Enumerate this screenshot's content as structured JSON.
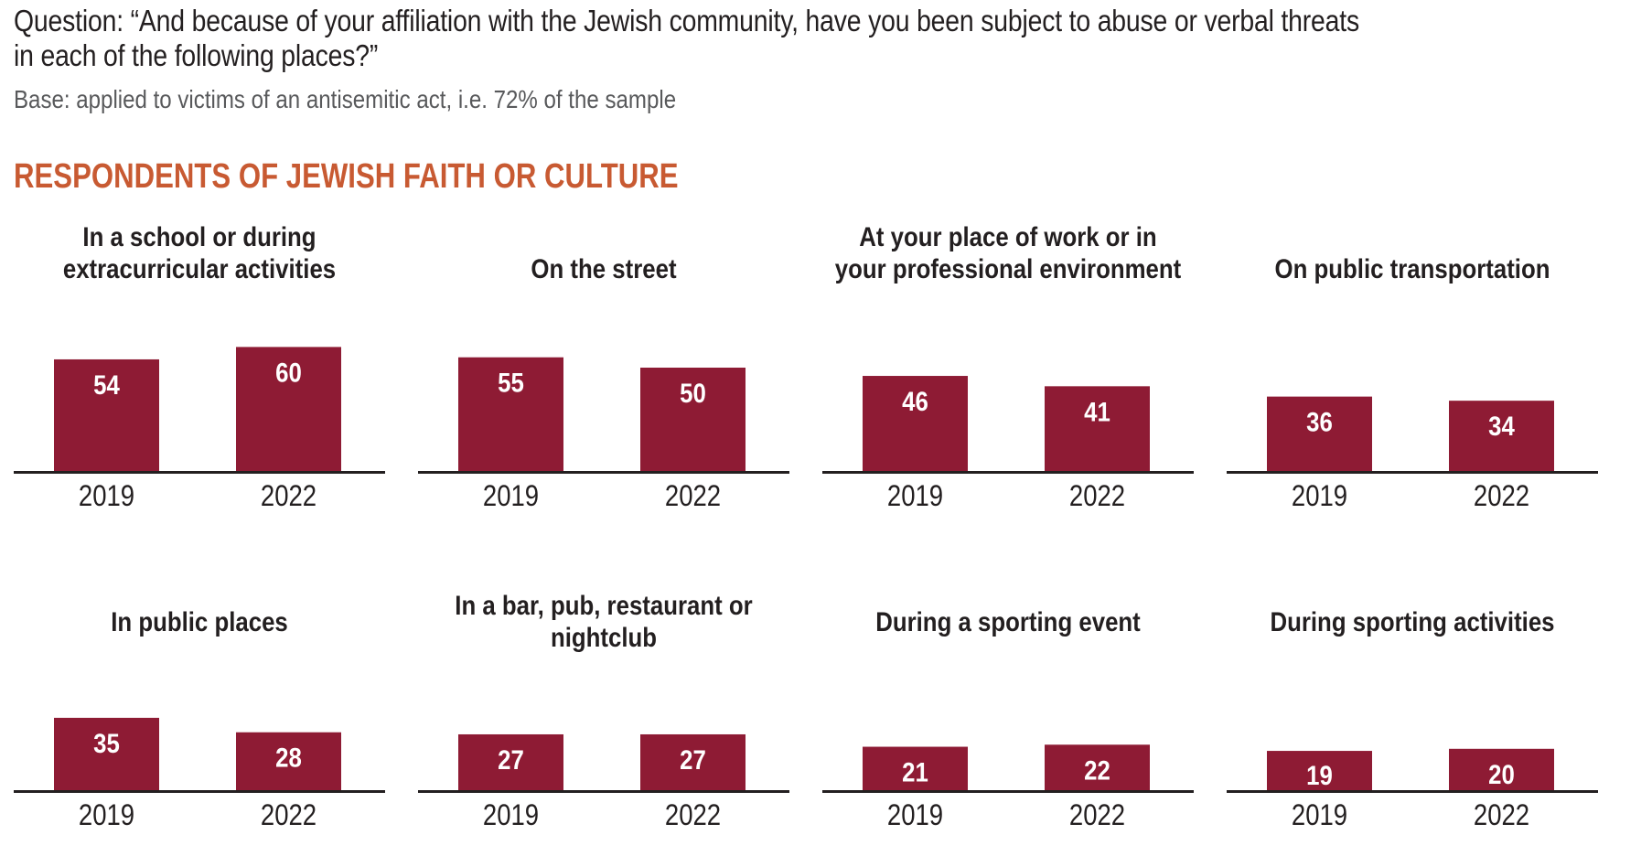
{
  "header": {
    "question": "Question: “And because of your affiliation with the Jewish community, have you been subject to abuse or verbal threats in each of the following places?”",
    "base": "Base: applied to victims of an antisemitic act, i.e. 72% of the sample",
    "section_title": "RESPONDENTS OF JEWISH FAITH OR CULTURE"
  },
  "colors": {
    "bar": "#8e1b34",
    "section_title": "#c85a32",
    "text": "#231f20"
  },
  "chart_data": [
    {
      "type": "bar",
      "title": "In a school or during extracurricular activities",
      "categories": [
        "2019",
        "2022"
      ],
      "values": [
        54,
        60
      ],
      "ylabel": "%",
      "xlabel": ""
    },
    {
      "type": "bar",
      "title": "On the street",
      "categories": [
        "2019",
        "2022"
      ],
      "values": [
        55,
        50
      ],
      "ylabel": "%",
      "xlabel": ""
    },
    {
      "type": "bar",
      "title": "At your place of work or in your professional environment",
      "categories": [
        "2019",
        "2022"
      ],
      "values": [
        46,
        41
      ],
      "ylabel": "%",
      "xlabel": ""
    },
    {
      "type": "bar",
      "title": "On public transportation",
      "categories": [
        "2019",
        "2022"
      ],
      "values": [
        36,
        34
      ],
      "ylabel": "%",
      "xlabel": ""
    },
    {
      "type": "bar",
      "title": "In public places",
      "categories": [
        "2019",
        "2022"
      ],
      "values": [
        35,
        28
      ],
      "ylabel": "%",
      "xlabel": ""
    },
    {
      "type": "bar",
      "title": "In a bar, pub, restaurant or nightclub",
      "categories": [
        "2019",
        "2022"
      ],
      "values": [
        27,
        27
      ],
      "ylabel": "%",
      "xlabel": ""
    },
    {
      "type": "bar",
      "title": "During a sporting event",
      "categories": [
        "2019",
        "2022"
      ],
      "values": [
        21,
        22
      ],
      "ylabel": "%",
      "xlabel": ""
    },
    {
      "type": "bar",
      "title": "During sporting activities",
      "categories": [
        "2019",
        "2022"
      ],
      "values": [
        19,
        20
      ],
      "ylabel": "%",
      "xlabel": ""
    }
  ]
}
